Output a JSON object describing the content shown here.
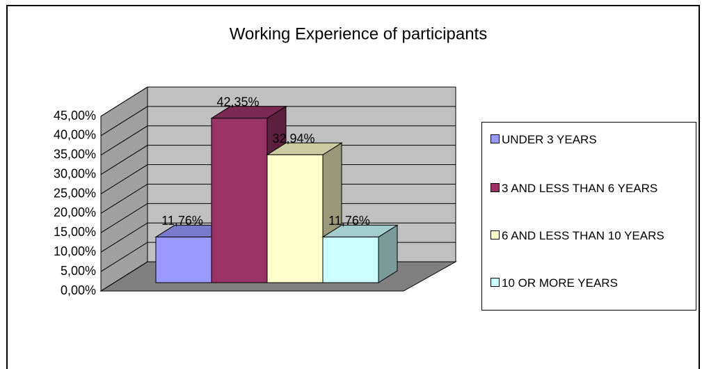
{
  "chart_data": {
    "type": "bar",
    "title": "Working Experience of participants",
    "categories": [
      "UNDER 3 YEARS",
      "3 AND LESS THAN 6 YEARS",
      "6 AND LESS THAN 10 YEARS",
      "10 OR MORE YEARS"
    ],
    "values": [
      11.76,
      42.35,
      32.94,
      11.76
    ],
    "value_labels": [
      "11,76%",
      "42,35%",
      "32,94%",
      "11,76%"
    ],
    "colors": [
      "#9999ff",
      "#993366",
      "#ffffcc",
      "#ccffff"
    ],
    "ylim": [
      0,
      45
    ],
    "yticks": [
      {
        "value": 0,
        "label": "0,00%"
      },
      {
        "value": 5,
        "label": "5,00%"
      },
      {
        "value": 10,
        "label": "10,00%"
      },
      {
        "value": 15,
        "label": "15,00%"
      },
      {
        "value": 20,
        "label": "20,00%"
      },
      {
        "value": 25,
        "label": "25,00%"
      },
      {
        "value": 30,
        "label": "30,00%"
      },
      {
        "value": 35,
        "label": "35,00%"
      },
      {
        "value": 40,
        "label": "40,00%"
      },
      {
        "value": 45,
        "label": "45,00%"
      }
    ],
    "grid": true,
    "legend": "right"
  }
}
